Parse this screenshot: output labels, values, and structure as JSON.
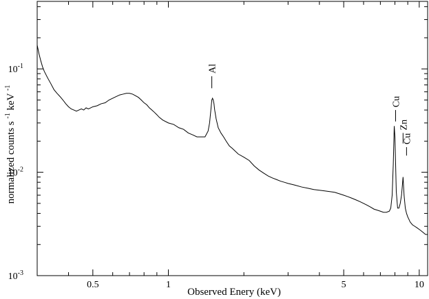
{
  "chart_data": {
    "type": "line",
    "title": "",
    "xlabel": "Observed Enery (keV)",
    "ylabel": {
      "part1": "normalized counts s",
      "sup1": "-1",
      "part2": " keV",
      "sup2": "-1"
    },
    "xscale": "log",
    "yscale": "log",
    "xlim": [
      0.3,
      10.8
    ],
    "ylim": [
      0.001,
      0.45
    ],
    "x_ticks": [
      {
        "value": 0.5,
        "label": "0.5"
      },
      {
        "value": 1,
        "label": "1"
      },
      {
        "value": 5,
        "label": "5"
      },
      {
        "value": 10,
        "label": "10"
      }
    ],
    "y_ticks": [
      {
        "value": 0.001,
        "label": "10",
        "exp": "-3"
      },
      {
        "value": 0.01,
        "label": "10",
        "exp": "-2"
      },
      {
        "value": 0.1,
        "label": "10",
        "exp": "-1"
      }
    ],
    "grid": false,
    "legend": "none",
    "line_color": "#000000",
    "series": [
      {
        "x": [
          0.3,
          0.305,
          0.31,
          0.315,
          0.32,
          0.33,
          0.34,
          0.35,
          0.36,
          0.37,
          0.38,
          0.39,
          0.4,
          0.41,
          0.42,
          0.43,
          0.44,
          0.45,
          0.46,
          0.47,
          0.48,
          0.49,
          0.5,
          0.52,
          0.54,
          0.56,
          0.58,
          0.6,
          0.62,
          0.64,
          0.66,
          0.68,
          0.7,
          0.72,
          0.74,
          0.76,
          0.78,
          0.8,
          0.82,
          0.84,
          0.86,
          0.88,
          0.9,
          0.92,
          0.95,
          1.0,
          1.05,
          1.1,
          1.15,
          1.2,
          1.25,
          1.3,
          1.35,
          1.4,
          1.44,
          1.46,
          1.48,
          1.49,
          1.5,
          1.51,
          1.52,
          1.53,
          1.55,
          1.58,
          1.62,
          1.66,
          1.7,
          1.75,
          1.8,
          1.9,
          2.0,
          2.1,
          2.2,
          2.3,
          2.4,
          2.5,
          2.6,
          2.7,
          2.8,
          2.9,
          3.0,
          3.2,
          3.4,
          3.6,
          3.8,
          4.0,
          4.2,
          4.4,
          4.6,
          4.8,
          5.0,
          5.2,
          5.4,
          5.6,
          5.8,
          6.0,
          6.2,
          6.4,
          6.6,
          6.8,
          7.0,
          7.2,
          7.4,
          7.6,
          7.7,
          7.8,
          7.88,
          7.95,
          8.0,
          8.05,
          8.1,
          8.2,
          8.3,
          8.4,
          8.5,
          8.62,
          8.7,
          8.8,
          8.9,
          9.0,
          9.1,
          9.2,
          9.4,
          9.6,
          9.8,
          10.0,
          10.2,
          10.4,
          10.6,
          10.8
        ],
        "y": [
          0.17,
          0.14,
          0.12,
          0.105,
          0.095,
          0.082,
          0.072,
          0.063,
          0.058,
          0.054,
          0.05,
          0.046,
          0.043,
          0.041,
          0.04,
          0.039,
          0.04,
          0.041,
          0.04,
          0.042,
          0.041,
          0.042,
          0.043,
          0.044,
          0.046,
          0.047,
          0.05,
          0.052,
          0.054,
          0.056,
          0.057,
          0.058,
          0.058,
          0.057,
          0.055,
          0.053,
          0.05,
          0.047,
          0.045,
          0.042,
          0.04,
          0.038,
          0.036,
          0.034,
          0.032,
          0.03,
          0.029,
          0.027,
          0.026,
          0.024,
          0.023,
          0.022,
          0.022,
          0.022,
          0.025,
          0.03,
          0.042,
          0.05,
          0.052,
          0.05,
          0.046,
          0.04,
          0.033,
          0.027,
          0.024,
          0.022,
          0.02,
          0.018,
          0.017,
          0.015,
          0.014,
          0.013,
          0.0115,
          0.0105,
          0.0098,
          0.0092,
          0.0088,
          0.0085,
          0.0082,
          0.008,
          0.0078,
          0.0075,
          0.0072,
          0.007,
          0.0068,
          0.0067,
          0.0066,
          0.0065,
          0.0064,
          0.0062,
          0.006,
          0.0058,
          0.0056,
          0.0054,
          0.0052,
          0.005,
          0.0048,
          0.0046,
          0.0044,
          0.0043,
          0.0042,
          0.0041,
          0.0041,
          0.0042,
          0.0045,
          0.006,
          0.012,
          0.028,
          0.022,
          0.012,
          0.0065,
          0.0045,
          0.0045,
          0.005,
          0.006,
          0.009,
          0.006,
          0.0045,
          0.004,
          0.0037,
          0.0035,
          0.0033,
          0.0031,
          0.003,
          0.0029,
          0.0028,
          0.0027,
          0.0026,
          0.0025,
          0.0025
        ]
      }
    ],
    "annotations": [
      {
        "label": "Al",
        "x": 1.49,
        "y_start": 0.065,
        "y_end": 0.085
      },
      {
        "label": "Cu",
        "x": 8.05,
        "y_start": 0.031,
        "y_end": 0.04
      },
      {
        "label": "Zn",
        "x": 8.62,
        "y_start": 0.019,
        "y_end": 0.024
      },
      {
        "label": "Cu",
        "x": 8.9,
        "y_start": 0.0145,
        "y_end": 0.0175
      }
    ]
  }
}
